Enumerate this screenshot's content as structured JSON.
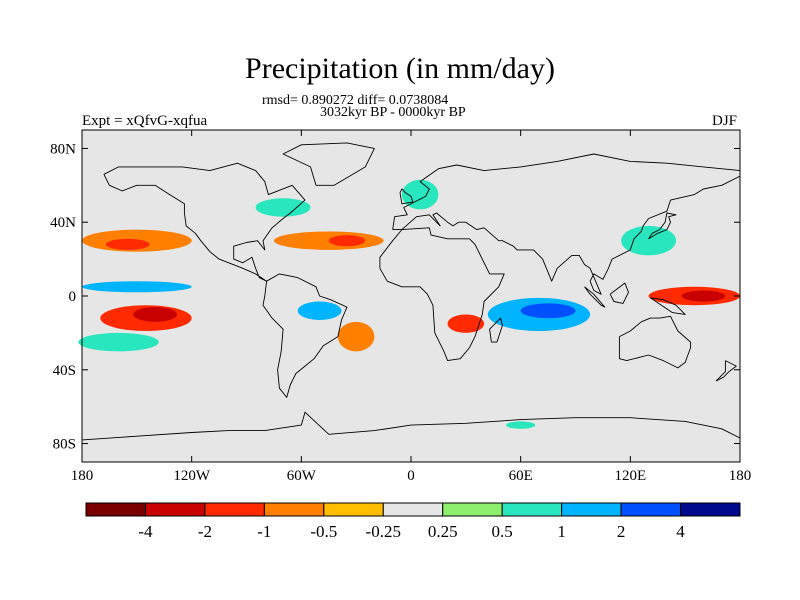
{
  "title": "Precipitation (in mm/day)",
  "stats_line": "rmsd= 0.890272  diff= 0.0738084",
  "period": "3032kyr BP - 0000kyr BP",
  "experiment": "Expt = xQfvG-xqfua",
  "season": "DJF",
  "map": {
    "projection": "cylindrical-equidistant",
    "lon_range": [
      -180,
      180
    ],
    "lat_range": [
      -90,
      90
    ],
    "ocean_land_background": "#e6e6e6",
    "y_ticks": [
      {
        "lat": 80,
        "label": "80N"
      },
      {
        "lat": 40,
        "label": "40N"
      },
      {
        "lat": 0,
        "label": "0"
      },
      {
        "lat": -40,
        "label": "40S"
      },
      {
        "lat": -80,
        "label": "80S"
      }
    ],
    "x_ticks": [
      {
        "lon": -180,
        "label": "180"
      },
      {
        "lon": -120,
        "label": "120W"
      },
      {
        "lon": -60,
        "label": "60W"
      },
      {
        "lon": 0,
        "label": "0"
      },
      {
        "lon": 60,
        "label": "60E"
      },
      {
        "lon": 120,
        "label": "120E"
      },
      {
        "lon": 180,
        "label": "180"
      }
    ]
  },
  "colorbar": {
    "colors": [
      "#7a0000",
      "#c80000",
      "#ff2a00",
      "#ff7f00",
      "#ffbe00",
      "#e6e6e6",
      "#8cf06e",
      "#28e6be",
      "#00b4ff",
      "#0050ff",
      "#000a8c"
    ],
    "labels": [
      "-4",
      "-2",
      "-1",
      "-0.5",
      "-0.25",
      "0.25",
      "0.5",
      "1",
      "2",
      "4"
    ]
  },
  "anomaly_regions": [
    {
      "name": "north-pacific-dry",
      "lon": -150,
      "lat": 30,
      "rlon": 30,
      "rlat": 6,
      "value": -1
    },
    {
      "name": "north-pacific-dry-core",
      "lon": -155,
      "lat": 28,
      "rlon": 12,
      "rlat": 3,
      "value": -2
    },
    {
      "name": "north-atlantic-dry",
      "lon": -45,
      "lat": 30,
      "rlon": 30,
      "rlat": 5,
      "value": -1
    },
    {
      "name": "north-atlantic-dry-core",
      "lon": -35,
      "lat": 30,
      "rlon": 10,
      "rlat": 3,
      "value": -2
    },
    {
      "name": "pacific-south-dry",
      "lon": -145,
      "lat": -12,
      "rlon": 25,
      "rlat": 7,
      "value": -2
    },
    {
      "name": "pacific-south-dry-core",
      "lon": -140,
      "lat": -10,
      "rlon": 12,
      "rlat": 4,
      "value": -4
    },
    {
      "name": "east-pacific-wet",
      "lon": -150,
      "lat": 5,
      "rlon": 30,
      "rlat": 3,
      "value": 1
    },
    {
      "name": "south-pacific-wet",
      "lon": -160,
      "lat": -25,
      "rlon": 22,
      "rlat": 5,
      "value": 0.5
    },
    {
      "name": "south-atlantic-dry",
      "lon": -30,
      "lat": -22,
      "rlon": 10,
      "rlat": 8,
      "value": -1
    },
    {
      "name": "south-america-wet",
      "lon": -50,
      "lat": -8,
      "rlon": 12,
      "rlat": 5,
      "value": 1
    },
    {
      "name": "south-africa-dry",
      "lon": 30,
      "lat": -15,
      "rlon": 10,
      "rlat": 5,
      "value": -2
    },
    {
      "name": "indian-ocean-wet",
      "lon": 70,
      "lat": -10,
      "rlon": 28,
      "rlat": 9,
      "value": 1
    },
    {
      "name": "indian-ocean-wet-core",
      "lon": 75,
      "lat": -8,
      "rlon": 15,
      "rlat": 4,
      "value": 2
    },
    {
      "name": "maritime-dry",
      "lon": 155,
      "lat": 0,
      "rlon": 25,
      "rlat": 5,
      "value": -2
    },
    {
      "name": "maritime-dry-core",
      "lon": 160,
      "lat": 0,
      "rlon": 12,
      "rlat": 3,
      "value": -4
    },
    {
      "name": "east-asia-wet",
      "lon": 130,
      "lat": 30,
      "rlon": 15,
      "rlat": 8,
      "value": 0.5
    },
    {
      "name": "north-america-wet",
      "lon": -70,
      "lat": 48,
      "rlon": 15,
      "rlat": 5,
      "value": 0.5
    },
    {
      "name": "europe-wet",
      "lon": 5,
      "lat": 55,
      "rlon": 10,
      "rlat": 8,
      "value": 0.5
    },
    {
      "name": "antarctic-coast-wet",
      "lon": 60,
      "lat": -70,
      "rlon": 8,
      "rlat": 2,
      "value": 0.5
    }
  ]
}
